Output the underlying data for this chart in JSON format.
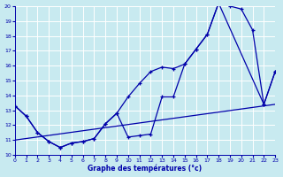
{
  "xlabel": "Graphe des températures (°c)",
  "bg_color": "#c8eaf0",
  "grid_color": "#aaccdd",
  "line_color": "#0000aa",
  "xlim": [
    0,
    23
  ],
  "ylim": [
    10,
    20
  ],
  "yticks": [
    10,
    11,
    12,
    13,
    14,
    15,
    16,
    17,
    18,
    19,
    20
  ],
  "xticks": [
    0,
    1,
    2,
    3,
    4,
    5,
    6,
    7,
    8,
    9,
    10,
    11,
    12,
    13,
    14,
    15,
    16,
    17,
    18,
    19,
    20,
    21,
    22,
    23
  ],
  "line1_x": [
    0,
    1,
    2,
    3,
    4,
    5,
    6,
    7,
    8,
    9,
    10,
    11,
    12,
    13,
    14,
    15,
    16,
    17,
    18,
    19,
    20,
    21,
    22,
    23
  ],
  "line1_y": [
    13.3,
    12.6,
    11.5,
    10.9,
    10.5,
    10.8,
    10.9,
    11.1,
    12.1,
    12.8,
    13.9,
    14.8,
    15.6,
    15.9,
    15.8,
    16.1,
    17.1,
    18.1,
    20.2,
    20.0,
    19.8,
    18.4,
    13.4,
    15.6
  ],
  "line2_x": [
    0,
    1,
    2,
    3,
    4,
    5,
    6,
    7,
    8,
    9,
    10,
    11,
    12,
    13,
    14,
    15,
    16,
    17,
    18,
    22,
    23
  ],
  "line2_y": [
    13.3,
    12.6,
    11.5,
    10.9,
    10.5,
    10.8,
    10.9,
    11.1,
    12.1,
    12.8,
    11.2,
    11.3,
    11.4,
    13.9,
    13.9,
    16.1,
    17.1,
    18.1,
    20.2,
    13.4,
    15.6
  ],
  "line3_x": [
    0,
    23
  ],
  "line3_y": [
    11.0,
    13.4
  ]
}
